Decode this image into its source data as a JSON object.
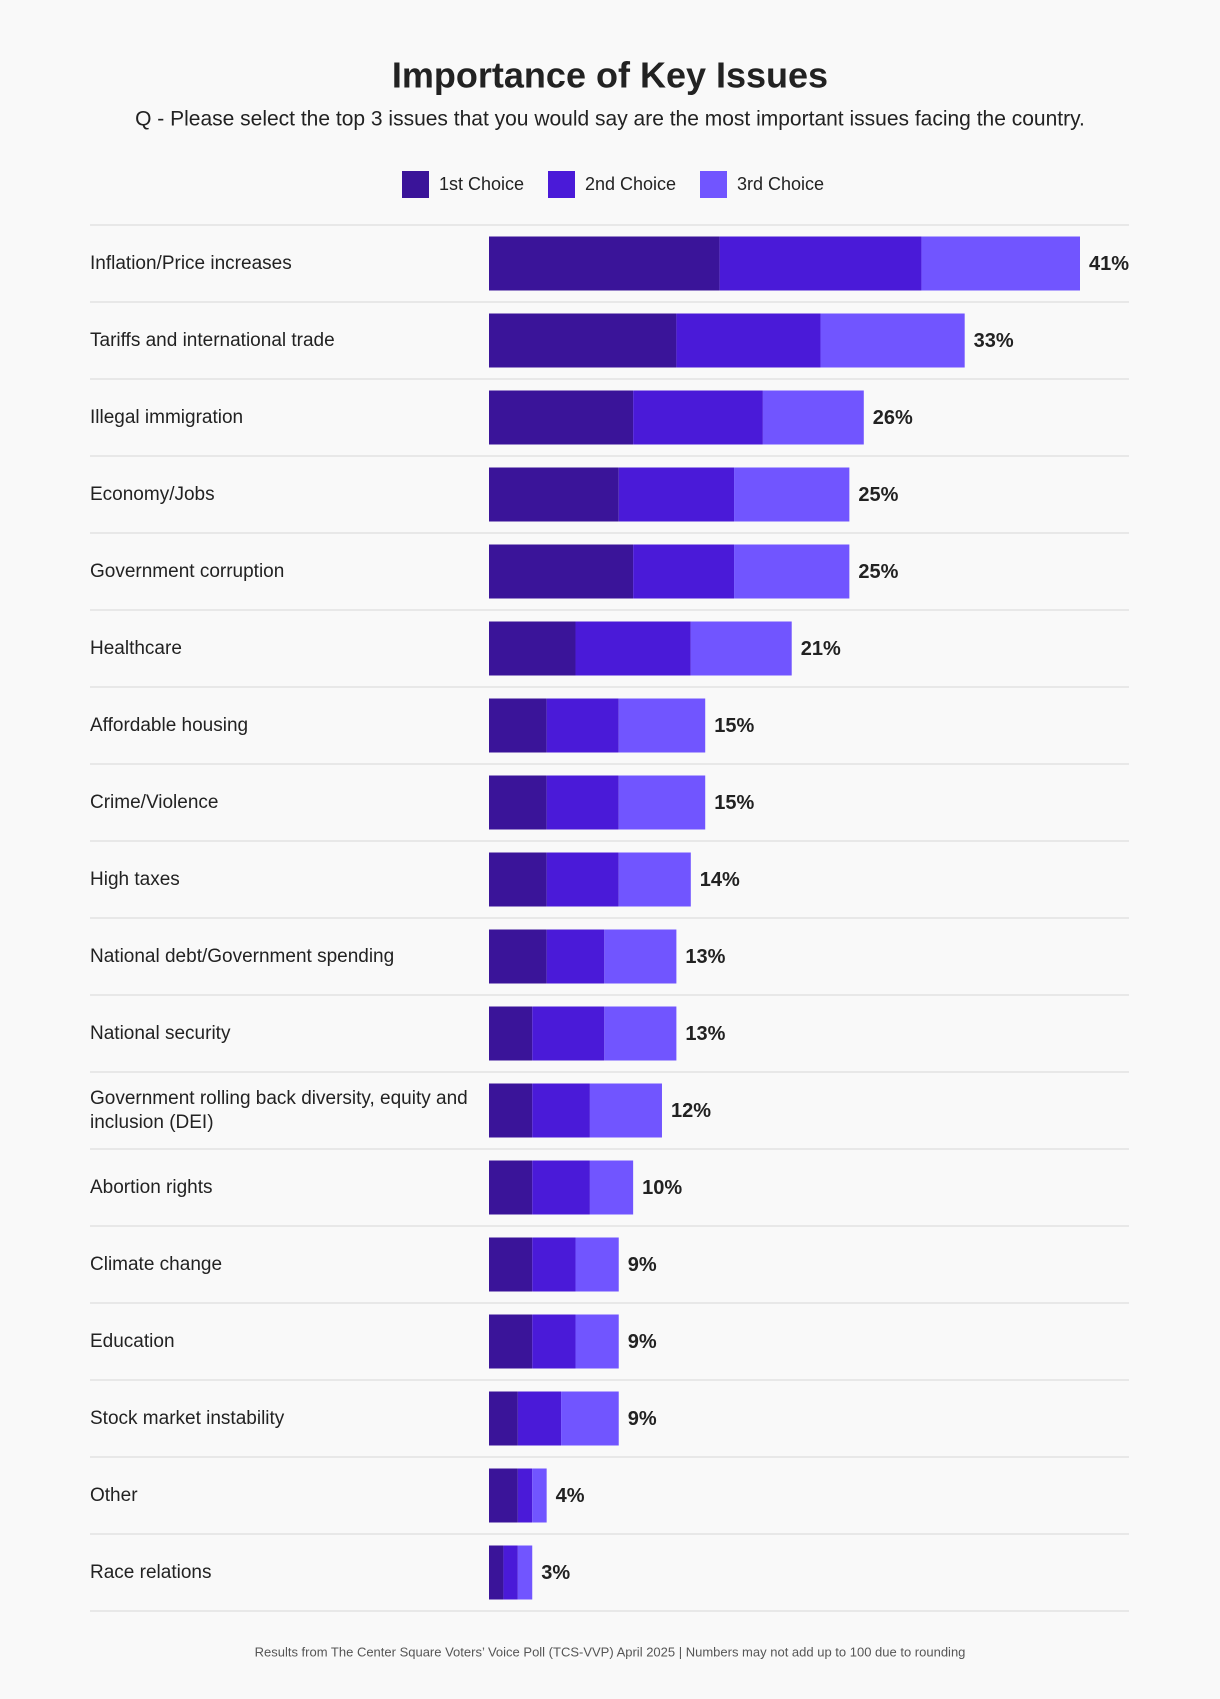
{
  "chart_data": {
    "type": "stacked-bar",
    "orientation": "horizontal",
    "title": "Importance of Key Issues",
    "subtitle": "Q - Please select the top 3 issues that you would say are the most important issues facing the country.",
    "categories": [
      "Inflation/Price increases",
      "Tariffs and international trade",
      "Illegal immigration",
      "Economy/Jobs",
      "Government corruption",
      "Healthcare",
      "Affordable housing",
      "Crime/Violence",
      "High taxes",
      "National debt/Government spending",
      "National security",
      "Government rolling back diversity, equity and inclusion (DEI)",
      "Abortion rights",
      "Climate change",
      "Education",
      "Stock market instability",
      "Other",
      "Race relations"
    ],
    "series": [
      {
        "name": "1st Choice",
        "color": "#3a1499",
        "values": [
          16,
          13,
          10,
          9,
          10,
          6,
          4,
          4,
          4,
          4,
          3,
          3,
          3,
          3,
          3,
          2,
          2,
          1
        ]
      },
      {
        "name": "2nd Choice",
        "color": "#4a1ad8",
        "values": [
          14,
          10,
          9,
          8,
          7,
          8,
          5,
          5,
          5,
          4,
          5,
          4,
          4,
          3,
          3,
          3,
          1,
          1
        ]
      },
      {
        "name": "3rd Choice",
        "color": "#7155ff",
        "values": [
          11,
          10,
          7,
          8,
          8,
          7,
          6,
          6,
          5,
          5,
          5,
          5,
          3,
          3,
          3,
          4,
          1,
          1
        ]
      }
    ],
    "totals": [
      41,
      33,
      26,
      25,
      25,
      21,
      15,
      15,
      14,
      13,
      13,
      12,
      10,
      9,
      9,
      9,
      4,
      3
    ],
    "total_labels": [
      "41%",
      "33%",
      "26%",
      "25%",
      "25%",
      "21%",
      "15%",
      "15%",
      "14%",
      "13%",
      "13%",
      "12%",
      "10%",
      "9%",
      "9%",
      "9%",
      "4%",
      "3%"
    ],
    "footnote": "Results from The Center Square Voters’ Voice Poll (TCS-VVP) April 2025 | Numbers may not add up to 100 due to rounding"
  }
}
